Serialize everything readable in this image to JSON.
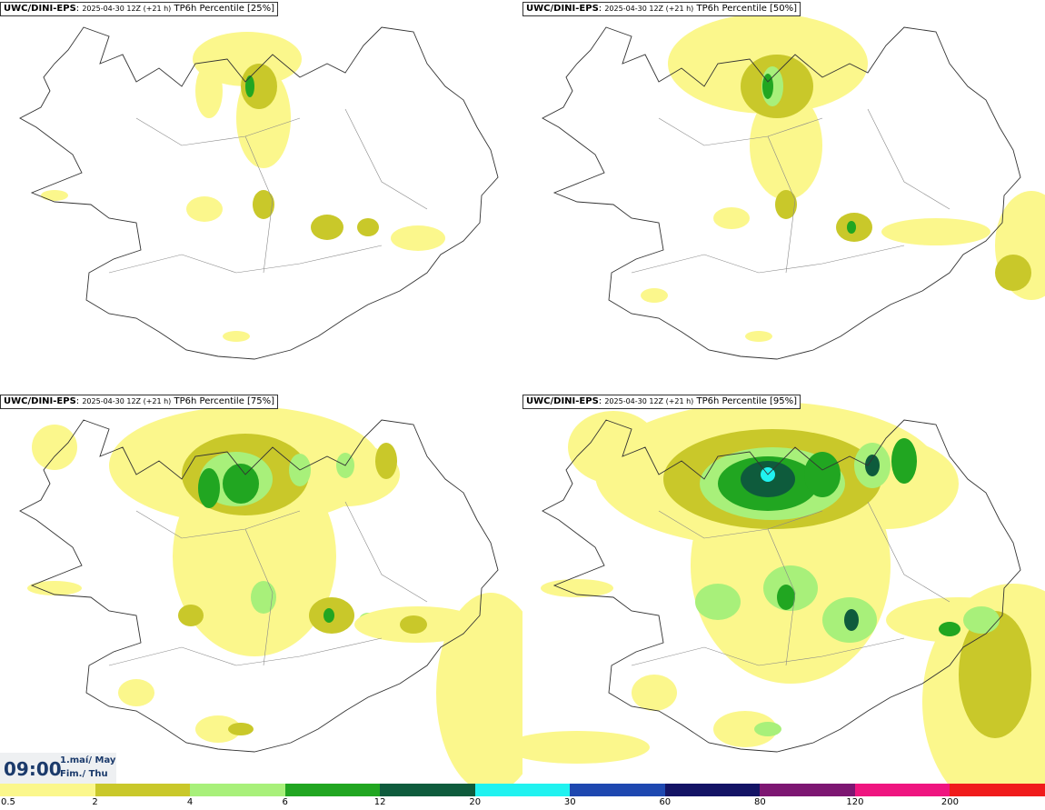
{
  "panels": [
    {
      "model": "UWC/DINI-EPS",
      "run": "2025-04-30 12Z (+21 h)",
      "field": "TP6h Percentile [25%]",
      "percentile": 25
    },
    {
      "model": "UWC/DINI-EPS",
      "run": "2025-04-30 12Z (+21 h)",
      "field": "TP6h Percentile [50%]",
      "percentile": 50
    },
    {
      "model": "UWC/DINI-EPS",
      "run": "2025-04-30 12Z (+21 h)",
      "field": "TP6h Percentile [75%]",
      "percentile": 75
    },
    {
      "model": "UWC/DINI-EPS",
      "run": "2025-04-30 12Z (+21 h)",
      "field": "TP6h Percentile [95%]",
      "percentile": 95
    }
  ],
  "valid_time": {
    "time": "09:00",
    "date_line1": "1.maí/ May",
    "date_line2": "Fim./ Thu"
  },
  "legend": {
    "labels": [
      "0.5",
      "2",
      "4",
      "6",
      "12",
      "20",
      "30",
      "60",
      "80",
      "120",
      "200"
    ],
    "colors": [
      "#fbf78c",
      "#c9c82a",
      "#a8f07a",
      "#21a621",
      "#0e5b3c",
      "#20f2f0",
      "#1e48b0",
      "#141465",
      "#7d1672",
      "#ef1580",
      "#f01b1b"
    ]
  }
}
